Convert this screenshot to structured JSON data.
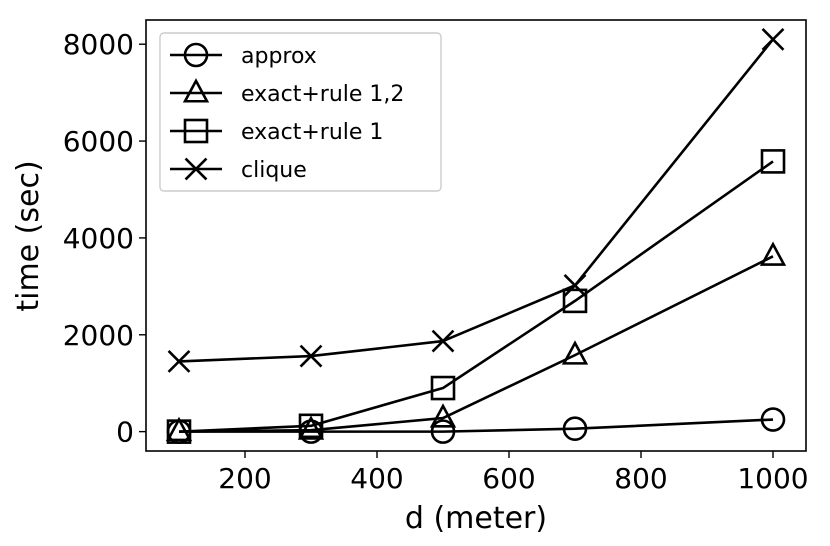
{
  "chart_data": {
    "type": "line",
    "title": "",
    "xlabel": "d (meter)",
    "ylabel": "time (sec)",
    "x": [
      100,
      300,
      500,
      700,
      1000
    ],
    "xlim": [
      50,
      1050
    ],
    "ylim": [
      -400,
      8500
    ],
    "xticks": [
      200,
      400,
      600,
      800,
      1000
    ],
    "yticks": [
      0,
      2000,
      4000,
      6000,
      8000
    ],
    "grid": false,
    "legend_position": "top-left",
    "line_color": "#000000",
    "series": [
      {
        "name": "approx",
        "marker": "circle",
        "values": [
          0,
          0,
          0,
          60,
          250
        ]
      },
      {
        "name": "exact+rule 1,2",
        "marker": "triangle",
        "values": [
          0,
          30,
          280,
          1580,
          3620
        ]
      },
      {
        "name": "exact+rule 1",
        "marker": "square",
        "values": [
          0,
          120,
          900,
          2700,
          5580
        ]
      },
      {
        "name": "clique",
        "marker": "x",
        "values": [
          1450,
          1560,
          1870,
          3020,
          8100
        ]
      }
    ]
  }
}
